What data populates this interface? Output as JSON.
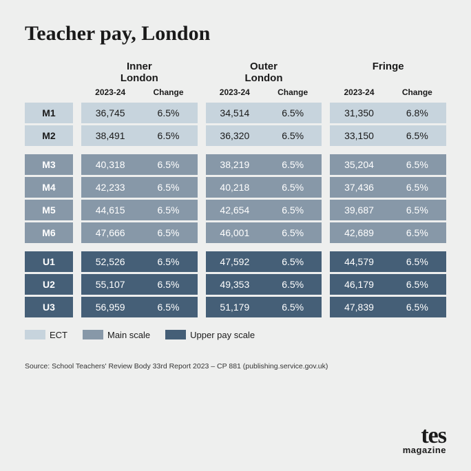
{
  "title": "Teacher pay, London",
  "regions": [
    "Inner London",
    "Outer London",
    "Fringe"
  ],
  "subcols": [
    "2023-24",
    "Change"
  ],
  "tiers": {
    "ect": {
      "color": "#c7d4dd",
      "text": "#1a1a1a",
      "label": "ECT"
    },
    "main": {
      "color": "#8798a8",
      "text": "#ffffff",
      "label": "Main scale"
    },
    "upper": {
      "color": "#455f77",
      "text": "#ffffff",
      "label": "Upper pay scale"
    }
  },
  "rows": [
    {
      "tier": "ect",
      "label": "M1",
      "values": [
        "36,745",
        "6.5%",
        "34,514",
        "6.5%",
        "31,350",
        "6.8%"
      ]
    },
    {
      "tier": "ect",
      "label": "M2",
      "values": [
        "38,491",
        "6.5%",
        "36,320",
        "6.5%",
        "33,150",
        "6.5%"
      ]
    },
    {
      "tier": "main",
      "label": "M3",
      "values": [
        "40,318",
        "6.5%",
        "38,219",
        "6.5%",
        "35,204",
        "6.5%"
      ]
    },
    {
      "tier": "main",
      "label": "M4",
      "values": [
        "42,233",
        "6.5%",
        "40,218",
        "6.5%",
        "37,436",
        "6.5%"
      ]
    },
    {
      "tier": "main",
      "label": "M5",
      "values": [
        "44,615",
        "6.5%",
        "42,654",
        "6.5%",
        "39,687",
        "6.5%"
      ]
    },
    {
      "tier": "main",
      "label": "M6",
      "values": [
        "47,666",
        "6.5%",
        "46,001",
        "6.5%",
        "42,689",
        "6.5%"
      ]
    },
    {
      "tier": "upper",
      "label": "U1",
      "values": [
        "52,526",
        "6.5%",
        "47,592",
        "6.5%",
        "44,579",
        "6.5%"
      ]
    },
    {
      "tier": "upper",
      "label": "U2",
      "values": [
        "55,107",
        "6.5%",
        "49,353",
        "6.5%",
        "46,179",
        "6.5%"
      ]
    },
    {
      "tier": "upper",
      "label": "U3",
      "values": [
        "56,959",
        "6.5%",
        "51,179",
        "6.5%",
        "47,839",
        "6.5%"
      ]
    }
  ],
  "legend": [
    "ECT",
    "Main scale",
    "Upper pay scale"
  ],
  "source": "Source: School Teachers' Review Body 33rd Report 2023 – CP 881 (publishing.service.gov.uk)",
  "logo": {
    "big": "tes",
    "small": "magazine"
  }
}
